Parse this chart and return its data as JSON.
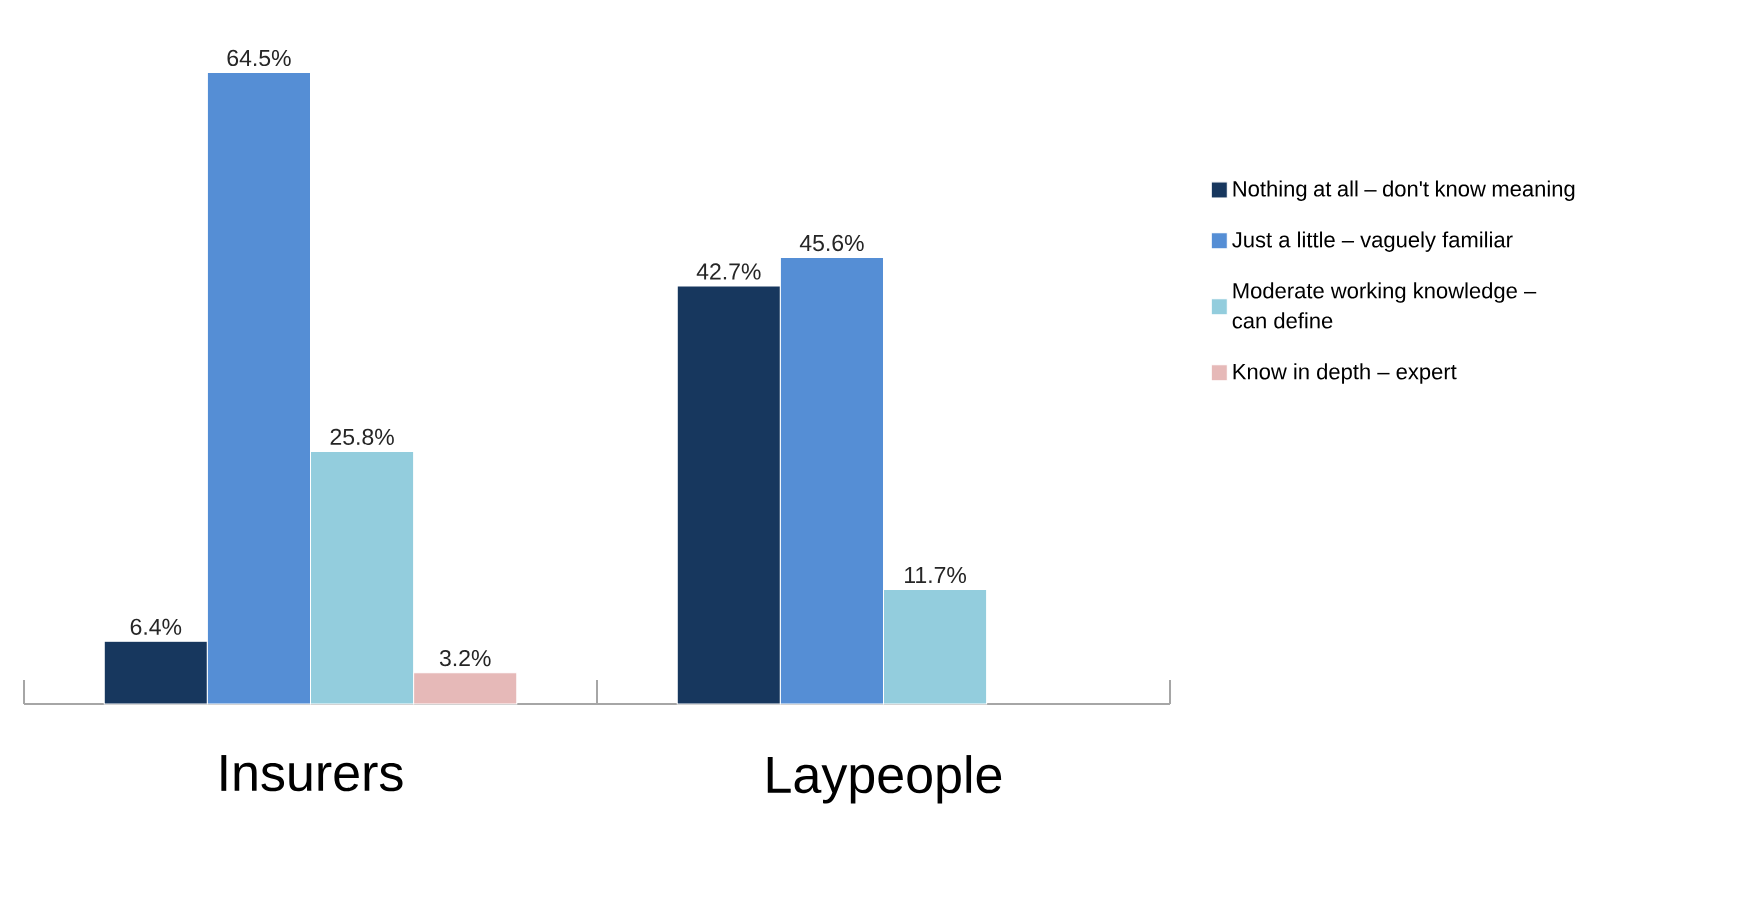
{
  "chart_data": {
    "type": "bar",
    "categories": [
      "Insurers",
      "Laypeople"
    ],
    "series": [
      {
        "name": "Nothing at all – don't know meaning",
        "color": "#17375e",
        "values": [
          6.4,
          42.7
        ],
        "value_labels": [
          "6.4%",
          "42.7%"
        ]
      },
      {
        "name": "Just a little – vaguely familiar",
        "color": "#558ed5",
        "values": [
          64.5,
          45.6
        ],
        "value_labels": [
          "64.5%",
          "45.6%"
        ]
      },
      {
        "name": "Moderate working knowledge – can define",
        "color": "#93cddd",
        "values": [
          25.8,
          11.7
        ],
        "value_labels": [
          "25.8%",
          "11.7%"
        ]
      },
      {
        "name": "Know in depth – expert",
        "color": "#e6b9b8",
        "values": [
          3.2,
          null
        ],
        "value_labels": [
          "3.2%",
          null
        ]
      }
    ],
    "legend": "right"
  }
}
